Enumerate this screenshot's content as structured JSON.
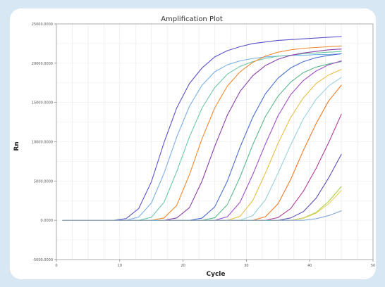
{
  "chart_data": {
    "type": "line",
    "title": "Amplification Plot",
    "xlabel": "Cycle",
    "ylabel": "Rn",
    "xlim": [
      0,
      50
    ],
    "ylim": [
      -5000,
      25000
    ],
    "xticks": [
      0,
      10,
      20,
      30,
      40,
      50
    ],
    "yticks": [
      -5000,
      0,
      5000,
      10000,
      15000,
      20000,
      25000
    ],
    "ytick_labels": [
      "-5000.0000",
      "0.0000",
      "5000.0000",
      "10000.0000",
      "15000.0000",
      "20000.0000",
      "25000.0000"
    ],
    "grid": true,
    "legend": "none",
    "x": [
      1,
      3,
      5,
      7,
      9,
      11,
      13,
      15,
      17,
      19,
      21,
      23,
      25,
      27,
      29,
      31,
      33,
      35,
      37,
      39,
      41,
      43,
      45
    ],
    "series": [
      {
        "color": "#5a52c8",
        "values": [
          0,
          0,
          0,
          0,
          0,
          210,
          1500,
          4900,
          9900,
          14300,
          17400,
          19400,
          20800,
          21600,
          22100,
          22500,
          22700,
          22900,
          23000,
          23100,
          23200,
          23300,
          23400
        ]
      },
      {
        "color": "#7ab0e8",
        "values": [
          0,
          0,
          0,
          0,
          0,
          0,
          420,
          2200,
          6000,
          10600,
          14500,
          17200,
          18900,
          19800,
          20300,
          20600,
          20800,
          20900,
          21000,
          21000,
          21100,
          21100,
          21200
        ]
      },
      {
        "color": "#6cc8a8",
        "values": [
          0,
          0,
          0,
          0,
          0,
          0,
          0,
          380,
          2300,
          6200,
          10600,
          14300,
          16900,
          18600,
          19600,
          20200,
          20600,
          20900,
          21000,
          21200,
          21300,
          21400,
          21500
        ]
      },
      {
        "color": "#f08a34",
        "values": [
          0,
          0,
          0,
          0,
          0,
          0,
          0,
          0,
          300,
          1900,
          5800,
          10400,
          14300,
          17100,
          18900,
          20100,
          20900,
          21400,
          21700,
          21900,
          22000,
          22100,
          22200
        ]
      },
      {
        "color": "#8a3ea8",
        "values": [
          0,
          0,
          0,
          0,
          0,
          0,
          0,
          0,
          0,
          300,
          1600,
          5000,
          9400,
          13400,
          16400,
          18400,
          19700,
          20500,
          21000,
          21300,
          21500,
          21700,
          21800
        ]
      },
      {
        "color": "#4a6ed0",
        "values": [
          0,
          0,
          0,
          0,
          0,
          0,
          0,
          0,
          0,
          0,
          0,
          280,
          1700,
          5000,
          9300,
          13100,
          16100,
          18100,
          19400,
          20200,
          20700,
          21000,
          21200
        ]
      },
      {
        "color": "#5cb888",
        "values": [
          0,
          0,
          0,
          0,
          0,
          0,
          0,
          0,
          0,
          0,
          0,
          0,
          320,
          2000,
          5500,
          9600,
          13200,
          15800,
          17600,
          18800,
          19500,
          19900,
          20200
        ]
      },
      {
        "color": "#a04ec8",
        "values": [
          0,
          0,
          0,
          0,
          0,
          0,
          0,
          0,
          0,
          0,
          0,
          0,
          0,
          450,
          2300,
          5800,
          9700,
          13300,
          16000,
          17800,
          19000,
          19800,
          20300
        ]
      },
      {
        "color": "#e8c048",
        "values": [
          0,
          0,
          0,
          0,
          0,
          0,
          0,
          0,
          0,
          0,
          0,
          0,
          0,
          0,
          500,
          2500,
          6000,
          9800,
          13100,
          15600,
          17400,
          18500,
          19200
        ]
      },
      {
        "color": "#9ad0e0",
        "values": [
          0,
          0,
          0,
          0,
          0,
          0,
          0,
          0,
          0,
          0,
          0,
          0,
          0,
          0,
          0,
          600,
          2600,
          6000,
          9600,
          12900,
          15400,
          17100,
          18200
        ]
      },
      {
        "color": "#f07a28",
        "values": [
          0,
          0,
          0,
          0,
          0,
          0,
          0,
          0,
          0,
          0,
          0,
          0,
          0,
          0,
          0,
          0,
          450,
          2100,
          5200,
          8900,
          12300,
          15200,
          17200
        ]
      },
      {
        "color": "#b03c98",
        "values": [
          0,
          0,
          0,
          0,
          0,
          0,
          0,
          0,
          0,
          0,
          0,
          0,
          0,
          0,
          0,
          0,
          0,
          350,
          1500,
          3700,
          6600,
          9900,
          13500
        ]
      },
      {
        "color": "#5a50b8",
        "values": [
          0,
          0,
          0,
          0,
          0,
          0,
          0,
          0,
          0,
          0,
          0,
          0,
          0,
          0,
          0,
          0,
          0,
          0,
          300,
          1100,
          2800,
          5400,
          8400
        ]
      },
      {
        "color": "#a8d048",
        "values": [
          0,
          0,
          0,
          0,
          0,
          0,
          0,
          0,
          0,
          0,
          0,
          0,
          0,
          0,
          0,
          0,
          0,
          0,
          0,
          300,
          1000,
          2400,
          4300
        ]
      },
      {
        "color": "#e8d060",
        "values": [
          0,
          0,
          0,
          0,
          0,
          0,
          0,
          0,
          0,
          0,
          0,
          0,
          0,
          0,
          0,
          0,
          0,
          0,
          0,
          250,
          900,
          2100,
          3800
        ]
      },
      {
        "color": "#80a8d8",
        "values": [
          0,
          0,
          0,
          0,
          0,
          0,
          0,
          0,
          0,
          0,
          0,
          0,
          0,
          0,
          0,
          0,
          0,
          0,
          0,
          0,
          200,
          600,
          1200
        ]
      }
    ]
  }
}
